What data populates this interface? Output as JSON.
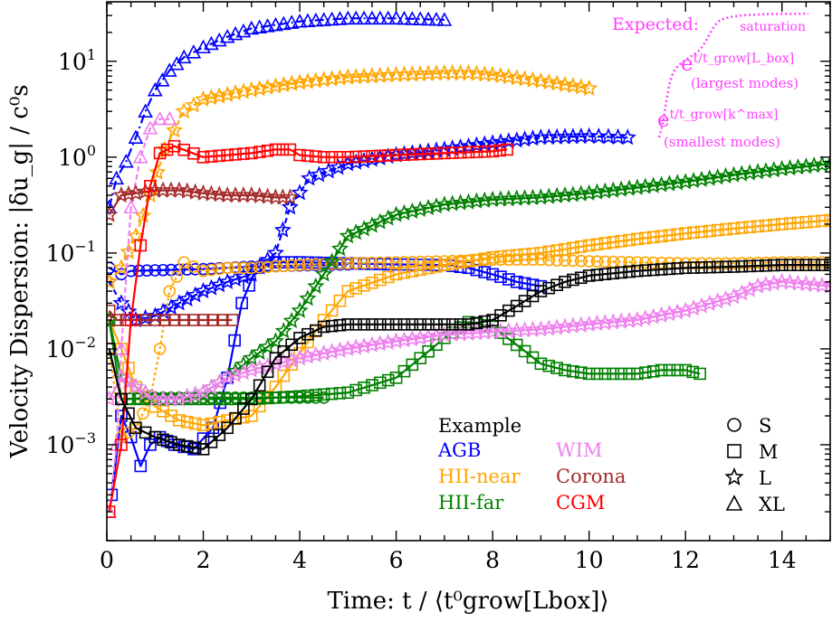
{
  "chart_data": {
    "type": "line",
    "title": "",
    "xlabel": "Time: t / ⟨t⁰grow[Lbox]⟩",
    "ylabel": "Velocity Dispersion: |δu_g| / c⁰s",
    "xlim": [
      0,
      15
    ],
    "ylim_log10": [
      -4.0,
      1.62
    ],
    "xticks": [
      0,
      2,
      4,
      6,
      8,
      10,
      12,
      14
    ],
    "xtick_labels": [
      "0",
      "2",
      "4",
      "6",
      "8",
      "10",
      "12",
      "14"
    ],
    "yticks_log10": [
      -3,
      -2,
      -1,
      0,
      1
    ],
    "ytick_labels": [
      {
        "base": "10",
        "exp": "−3"
      },
      {
        "base": "10",
        "exp": "−2"
      },
      {
        "base": "10",
        "exp": "−1"
      },
      {
        "base": "10",
        "exp": "0"
      },
      {
        "base": "10",
        "exp": "1"
      }
    ],
    "grid": false,
    "colors": {
      "AGB": "#0000ff",
      "HII-near": "#ffa500",
      "HII-far": "#008000",
      "WIM": "#ee82ee",
      "Corona": "#a52a2a",
      "CGM": "#ff0000",
      "Example": "#000000"
    },
    "series": [
      {
        "name": "AGB-S",
        "label": "AGB",
        "color": "#0000ff",
        "marker": "circle",
        "dash": "",
        "x": [
          0.05,
          0.3,
          0.5,
          1,
          1.5,
          2,
          2.5,
          3,
          3.5,
          4,
          4.5,
          5
        ],
        "y": [
          0.07,
          0.06,
          0.065,
          0.066,
          0.067,
          0.068,
          0.07,
          0.072,
          0.073,
          0.074,
          0.075,
          0.076
        ]
      },
      {
        "name": "AGB-M",
        "label": "AGB",
        "color": "#0000ff",
        "marker": "square",
        "dash": "",
        "x": [
          0.1,
          0.3,
          0.5,
          0.7,
          0.9,
          1.1,
          1.4,
          1.8,
          2.2,
          2.5,
          2.8,
          3.1,
          3.5,
          4,
          5,
          6,
          7,
          7.5,
          8,
          8.5,
          9
        ],
        "y": [
          0.0003,
          0.002,
          0.0012,
          0.0006,
          0.001,
          0.0012,
          0.001,
          0.0009,
          0.0015,
          0.005,
          0.03,
          0.07,
          0.08,
          0.08,
          0.078,
          0.076,
          0.075,
          0.07,
          0.06,
          0.05,
          0.045
        ]
      },
      {
        "name": "AGB-L",
        "label": "AGB",
        "color": "#0000ff",
        "marker": "star",
        "dash": "6,4",
        "x": [
          0.05,
          0.3,
          0.6,
          1,
          1.5,
          2,
          2.5,
          3,
          3.5,
          3.8,
          4.2,
          5,
          6,
          7,
          8,
          9,
          10,
          10.8
        ],
        "y": [
          0.05,
          0.03,
          0.02,
          0.022,
          0.03,
          0.04,
          0.05,
          0.06,
          0.1,
          0.3,
          0.6,
          0.85,
          1.05,
          1.2,
          1.4,
          1.6,
          1.65,
          1.6
        ]
      },
      {
        "name": "AGB-XL",
        "label": "AGB",
        "color": "#0000ff",
        "marker": "triangle",
        "dash": "10,4,2,4",
        "x": [
          0.05,
          0.2,
          0.4,
          0.6,
          0.8,
          1,
          1.3,
          1.6,
          2,
          2.5,
          3,
          4,
          5,
          6,
          7
        ],
        "y": [
          0.3,
          0.6,
          0.9,
          1.6,
          3,
          5,
          8,
          11,
          14,
          18,
          22,
          26,
          28,
          28,
          27
        ]
      },
      {
        "name": "HII-near-S",
        "label": "HII-near",
        "color": "#ffa500",
        "marker": "circle",
        "dash": "3,3",
        "x": [
          0.05,
          0.3,
          0.6,
          0.9,
          1.1,
          1.3,
          1.6,
          2,
          2.5,
          3,
          4,
          5,
          6,
          7,
          8,
          9,
          10,
          11,
          12,
          13,
          14,
          15
        ],
        "y": [
          0.01,
          0.0012,
          0.0015,
          0.003,
          0.01,
          0.04,
          0.08,
          0.065,
          0.07,
          0.07,
          0.075,
          0.078,
          0.08,
          0.082,
          0.085,
          0.085,
          0.082,
          0.08,
          0.078,
          0.078,
          0.08,
          0.08
        ]
      },
      {
        "name": "HII-near-M",
        "label": "HII-near",
        "color": "#ffa500",
        "marker": "square",
        "dash": "",
        "x": [
          0.05,
          0.3,
          0.6,
          1,
          1.5,
          2,
          2.5,
          3,
          3.5,
          4,
          4.5,
          5,
          6,
          7,
          8,
          9,
          10,
          11,
          12,
          13,
          14,
          15
        ],
        "y": [
          0.02,
          0.01,
          0.004,
          0.0025,
          0.0018,
          0.0016,
          0.0018,
          0.002,
          0.004,
          0.009,
          0.02,
          0.04,
          0.06,
          0.075,
          0.09,
          0.1,
          0.12,
          0.14,
          0.16,
          0.18,
          0.2,
          0.22
        ]
      },
      {
        "name": "HII-near-L",
        "label": "HII-near",
        "color": "#ffa500",
        "marker": "star",
        "dash": "6,4",
        "x": [
          0.05,
          0.3,
          0.6,
          0.9,
          1.2,
          1.6,
          2,
          3,
          4,
          5,
          6,
          7,
          7.5,
          8,
          9,
          10
        ],
        "y": [
          0.05,
          0.07,
          0.15,
          0.4,
          1.2,
          3,
          4,
          5,
          6,
          6.8,
          7.2,
          7.5,
          7.5,
          7.2,
          6.2,
          5.2
        ]
      },
      {
        "name": "HII-far-S",
        "label": "HII-far",
        "color": "#008000",
        "marker": "circle",
        "dash": "",
        "x": [
          0.05,
          0.3,
          1,
          2,
          3,
          4,
          4.5
        ],
        "y": [
          0.02,
          0.003,
          0.0031,
          0.0031,
          0.0031,
          0.0031,
          0.0031
        ]
      },
      {
        "name": "HII-far-M",
        "label": "HII-far",
        "color": "#008000",
        "marker": "square",
        "dash": "",
        "x": [
          0.05,
          0.3,
          1,
          2,
          3,
          4,
          5,
          6,
          6.5,
          7,
          7.5,
          8,
          8.5,
          9,
          9.5,
          10,
          11,
          11.5,
          12,
          12.3
        ],
        "y": [
          0.02,
          0.003,
          0.003,
          0.003,
          0.003,
          0.0032,
          0.0035,
          0.005,
          0.008,
          0.013,
          0.019,
          0.017,
          0.011,
          0.007,
          0.006,
          0.0055,
          0.0055,
          0.006,
          0.006,
          0.0055
        ]
      },
      {
        "name": "HII-far-L",
        "label": "HII-far",
        "color": "#008000",
        "marker": "star",
        "dash": "",
        "x": [
          0.05,
          0.3,
          0.6,
          1,
          1.5,
          2,
          2.5,
          3,
          3.5,
          4,
          4.5,
          5,
          6,
          7,
          8,
          9,
          10,
          11,
          12,
          13,
          14,
          15
        ],
        "y": [
          0.02,
          0.005,
          0.004,
          0.003,
          0.003,
          0.0035,
          0.005,
          0.008,
          0.012,
          0.025,
          0.06,
          0.15,
          0.25,
          0.32,
          0.36,
          0.38,
          0.42,
          0.48,
          0.55,
          0.65,
          0.75,
          0.85
        ]
      },
      {
        "name": "WIM-L",
        "label": "WIM",
        "color": "#ee82ee",
        "marker": "star",
        "dash": "",
        "x": [
          0.05,
          0.3,
          0.6,
          1,
          1.5,
          2,
          2.5,
          3,
          4,
          5,
          6,
          7,
          8,
          9,
          10,
          11,
          12,
          13,
          13.5,
          14,
          15
        ],
        "y": [
          0.003,
          0.005,
          0.004,
          0.003,
          0.003,
          0.0035,
          0.005,
          0.006,
          0.008,
          0.01,
          0.012,
          0.014,
          0.015,
          0.016,
          0.018,
          0.02,
          0.025,
          0.035,
          0.045,
          0.05,
          0.045
        ]
      },
      {
        "name": "WIM-XL",
        "label": "WIM",
        "color": "#ee82ee",
        "marker": "triangle",
        "dash": "6,3",
        "x": [
          0.05,
          0.2,
          0.3,
          0.5,
          0.7,
          0.9,
          1.1,
          1.3
        ],
        "y": [
          0.0002,
          0.001,
          0.01,
          0.3,
          1,
          2,
          2.5,
          2.5
        ]
      },
      {
        "name": "Corona-M",
        "label": "Corona",
        "color": "#a52a2a",
        "marker": "square",
        "dash": "",
        "x": [
          0.05,
          0.2,
          0.4,
          0.8,
          1.2,
          1.6,
          2,
          2.6
        ],
        "y": [
          0.025,
          0.02,
          0.02,
          0.02,
          0.02,
          0.02,
          0.02,
          0.02
        ]
      },
      {
        "name": "Corona-L",
        "label": "Corona",
        "color": "#a52a2a",
        "marker": "star",
        "dash": "",
        "x": [
          0.05,
          0.3,
          0.6,
          1,
          1.5,
          2,
          2.5,
          3,
          3.5,
          3.8
        ],
        "y": [
          0.25,
          0.4,
          0.42,
          0.45,
          0.45,
          0.42,
          0.4,
          0.4,
          0.38,
          0.38
        ]
      },
      {
        "name": "CGM-M",
        "label": "CGM",
        "color": "#ff0000",
        "marker": "square",
        "dash": "",
        "x": [
          0.05,
          0.3,
          0.5,
          0.7,
          0.9,
          1.1,
          1.4,
          2,
          2.5,
          3,
          3.5,
          3.8,
          4,
          4.5,
          5,
          6,
          7,
          8,
          8.3
        ],
        "y": [
          0.0002,
          0.001,
          0.02,
          0.12,
          0.5,
          1.1,
          1.3,
          1.0,
          1.05,
          1.1,
          1.2,
          1.2,
          1.05,
          1.0,
          1.0,
          1.05,
          1.1,
          1.15,
          1.2
        ]
      },
      {
        "name": "Example-M",
        "label": "Example",
        "color": "#000000",
        "marker": "square",
        "dash": "",
        "x": [
          0.05,
          0.3,
          0.6,
          1,
          1.5,
          2,
          2.5,
          3,
          3.5,
          4,
          4.5,
          5,
          5.5,
          6,
          6.5,
          7,
          7.5,
          8,
          8.5,
          9,
          9.5,
          10,
          11,
          12,
          13,
          14,
          15
        ],
        "y": [
          0.01,
          0.003,
          0.0015,
          0.0012,
          0.001,
          0.0009,
          0.0015,
          0.003,
          0.008,
          0.013,
          0.017,
          0.018,
          0.018,
          0.018,
          0.018,
          0.018,
          0.018,
          0.02,
          0.028,
          0.04,
          0.05,
          0.058,
          0.065,
          0.07,
          0.072,
          0.075,
          0.075
        ]
      }
    ],
    "legend": {
      "placement": "lower-right",
      "heading": "Example",
      "entries": [
        {
          "text": "AGB",
          "color": "#0000ff"
        },
        {
          "text": "HII-near",
          "color": "#ffa500"
        },
        {
          "text": "HII-far",
          "color": "#008000"
        },
        {
          "text": "WIM",
          "color": "#ee82ee"
        },
        {
          "text": "Corona",
          "color": "#a52a2a"
        },
        {
          "text": "CGM",
          "color": "#ff0000"
        }
      ],
      "markers": [
        {
          "text": "S",
          "marker": "circle"
        },
        {
          "text": "M",
          "marker": "square"
        },
        {
          "text": "L",
          "marker": "star"
        },
        {
          "text": "XL",
          "marker": "triangle"
        }
      ]
    },
    "annotation": {
      "color": "#ff3fff",
      "title": "Expected:",
      "saturation": "saturation",
      "largest_formula_base": "e",
      "largest_formula_exp": "t/t_grow[L_box]",
      "largest_caption": "(largest modes)",
      "smallest_formula_base": "e",
      "smallest_formula_exp": "t/t_grow[k^max]",
      "smallest_caption": "(smallest modes)"
    }
  }
}
